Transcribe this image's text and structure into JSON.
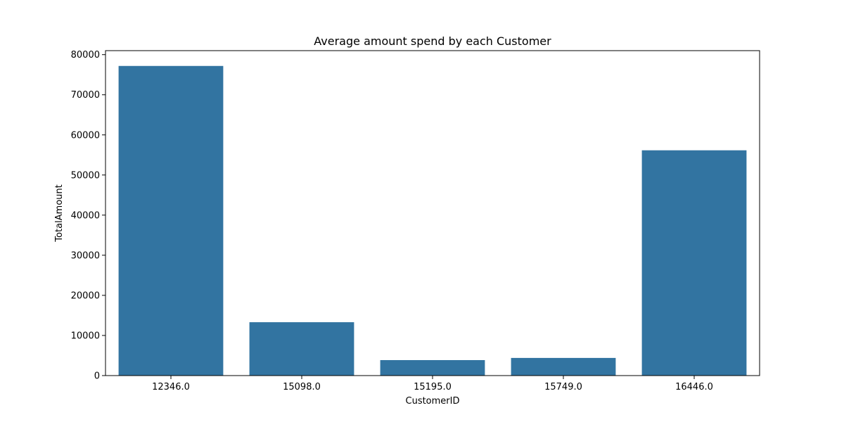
{
  "chart_data": {
    "type": "bar",
    "title": "Average amount spend by each Customer",
    "xlabel": "CustomerID",
    "ylabel": "TotalAmount",
    "categories": [
      "12346.0",
      "15098.0",
      "15195.0",
      "15749.0",
      "16446.0"
    ],
    "values": [
      77183.6,
      13305.5,
      3861.0,
      4400.0,
      56157.0
    ],
    "ylim": [
      0,
      81000
    ],
    "yticks": [
      0,
      10000,
      20000,
      30000,
      40000,
      50000,
      60000,
      70000,
      80000
    ],
    "grid": false,
    "bar_color": "#3274a1"
  }
}
